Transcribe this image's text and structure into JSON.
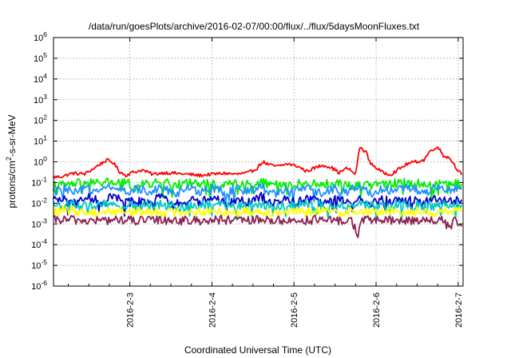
{
  "chart_data": {
    "type": "line",
    "title": "/data/run/goesPlots/archive/2016-02-07/00:00/flux/../flux/5daysMoonFluxes.txt",
    "xlabel": "Coordinated Universal Time (UTC)",
    "ylabel": "protons/cm2-s-sr-MeV",
    "ylabel_parts": {
      "before": "protons/cm",
      "superscript": "2",
      "after": "-s-sr-MeV"
    },
    "x_unit": "date (days from 2016-02-02 00:00 UTC)",
    "xlim": [
      0.07,
      5.06
    ],
    "xticks": [
      {
        "value": 1.0,
        "label": "2016-2-3"
      },
      {
        "value": 2.0,
        "label": "2016-2-4"
      },
      {
        "value": 3.0,
        "label": "2016-2-5"
      },
      {
        "value": 4.0,
        "label": "2016-2-6"
      },
      {
        "value": 5.0,
        "label": "2016-2-7"
      }
    ],
    "y_scale": "log",
    "ylim": [
      1e-06,
      1000000.0
    ],
    "yticks": [
      {
        "exp": -6,
        "base": "10",
        "power": "-6"
      },
      {
        "exp": -5,
        "base": "10",
        "power": "-5"
      },
      {
        "exp": -4,
        "base": "10",
        "power": "-4"
      },
      {
        "exp": -3,
        "base": "10",
        "power": "-3"
      },
      {
        "exp": -2,
        "base": "10",
        "power": "-2"
      },
      {
        "exp": -1,
        "base": "10",
        "power": "-1"
      },
      {
        "exp": 0,
        "base": "10",
        "power": "0"
      },
      {
        "exp": 1,
        "base": "10",
        "power": "1"
      },
      {
        "exp": 2,
        "base": "10",
        "power": "2"
      },
      {
        "exp": 3,
        "base": "10",
        "power": "3"
      },
      {
        "exp": 4,
        "base": "10",
        "power": "4"
      },
      {
        "exp": 5,
        "base": "10",
        "power": "5"
      },
      {
        "exp": 6,
        "base": "10",
        "power": "6"
      }
    ],
    "grid": true,
    "legend": "none",
    "series": [
      {
        "color": "#ff0000",
        "points": [
          [
            0.07,
            0.18
          ],
          [
            0.18,
            0.2
          ],
          [
            0.3,
            0.28
          ],
          [
            0.45,
            0.26
          ],
          [
            0.55,
            0.45
          ],
          [
            0.62,
            0.7
          ],
          [
            0.72,
            1.2
          ],
          [
            0.8,
            0.9
          ],
          [
            0.87,
            0.35
          ],
          [
            0.95,
            0.22
          ],
          [
            1.02,
            0.3
          ],
          [
            1.15,
            0.4
          ],
          [
            1.28,
            0.25
          ],
          [
            1.42,
            0.3
          ],
          [
            1.55,
            0.28
          ],
          [
            1.7,
            0.25
          ],
          [
            1.85,
            0.22
          ],
          [
            2.0,
            0.25
          ],
          [
            2.15,
            0.28
          ],
          [
            2.3,
            0.25
          ],
          [
            2.45,
            0.3
          ],
          [
            2.55,
            0.5
          ],
          [
            2.62,
            1.0
          ],
          [
            2.7,
            0.7
          ],
          [
            2.8,
            0.6
          ],
          [
            2.92,
            0.8
          ],
          [
            3.05,
            0.6
          ],
          [
            3.15,
            0.35
          ],
          [
            3.25,
            0.5
          ],
          [
            3.35,
            0.7
          ],
          [
            3.45,
            0.55
          ],
          [
            3.55,
            0.3
          ],
          [
            3.65,
            0.5
          ],
          [
            3.75,
            0.25
          ],
          [
            3.8,
            5.0
          ],
          [
            3.88,
            3.0
          ],
          [
            3.92,
            1.0
          ],
          [
            3.98,
            0.6
          ],
          [
            4.08,
            0.3
          ],
          [
            4.18,
            0.25
          ],
          [
            4.28,
            0.45
          ],
          [
            4.38,
            0.8
          ],
          [
            4.48,
            1.0
          ],
          [
            4.58,
            1.2
          ],
          [
            4.65,
            3.0
          ],
          [
            4.72,
            5.0
          ],
          [
            4.78,
            4.0
          ],
          [
            4.82,
            2.0
          ],
          [
            4.9,
            1.5
          ],
          [
            4.98,
            0.5
          ],
          [
            5.04,
            0.25
          ]
        ]
      },
      {
        "color": "#00ee00",
        "points": [
          [
            0.07,
            0.07
          ],
          [
            0.25,
            0.08
          ],
          [
            0.45,
            0.1
          ],
          [
            0.6,
            0.09
          ],
          [
            0.7,
            0.11
          ],
          [
            0.85,
            0.1
          ],
          [
            1.0,
            0.09
          ],
          [
            1.05,
            0.05
          ],
          [
            1.2,
            0.09
          ],
          [
            1.4,
            0.1
          ],
          [
            1.6,
            0.08
          ],
          [
            1.75,
            0.1
          ],
          [
            1.9,
            0.09
          ],
          [
            2.1,
            0.07
          ],
          [
            2.3,
            0.1
          ],
          [
            2.5,
            0.09
          ],
          [
            2.7,
            0.1
          ],
          [
            2.9,
            0.07
          ],
          [
            3.1,
            0.09
          ],
          [
            3.3,
            0.08
          ],
          [
            3.5,
            0.09
          ],
          [
            3.7,
            0.07
          ],
          [
            3.9,
            0.1
          ],
          [
            4.1,
            0.08
          ],
          [
            4.3,
            0.1
          ],
          [
            4.5,
            0.09
          ],
          [
            4.7,
            0.08
          ],
          [
            4.9,
            0.1
          ],
          [
            5.04,
            0.08
          ]
        ]
      },
      {
        "color": "#1e90ff",
        "points": [
          [
            0.07,
            0.035
          ],
          [
            0.2,
            0.05
          ],
          [
            0.35,
            0.03
          ],
          [
            0.5,
            0.06
          ],
          [
            0.65,
            0.04
          ],
          [
            0.8,
            0.07
          ],
          [
            0.95,
            0.03
          ],
          [
            1.1,
            0.05
          ],
          [
            1.25,
            0.04
          ],
          [
            1.4,
            0.06
          ],
          [
            1.55,
            0.03
          ],
          [
            1.7,
            0.05
          ],
          [
            1.85,
            0.04
          ],
          [
            2.0,
            0.06
          ],
          [
            2.15,
            0.03
          ],
          [
            2.3,
            0.05
          ],
          [
            2.45,
            0.04
          ],
          [
            2.6,
            0.06
          ],
          [
            2.75,
            0.03
          ],
          [
            2.9,
            0.05
          ],
          [
            3.05,
            0.04
          ],
          [
            3.2,
            0.05
          ],
          [
            3.35,
            0.03
          ],
          [
            3.5,
            0.05
          ],
          [
            3.65,
            0.04
          ],
          [
            3.8,
            0.06
          ],
          [
            3.95,
            0.03
          ],
          [
            4.1,
            0.05
          ],
          [
            4.25,
            0.04
          ],
          [
            4.4,
            0.06
          ],
          [
            4.55,
            0.03
          ],
          [
            4.7,
            0.05
          ],
          [
            4.85,
            0.04
          ],
          [
            5.04,
            0.05
          ]
        ]
      },
      {
        "color": "#0000cc",
        "points": [
          [
            0.07,
            0.012
          ],
          [
            0.2,
            0.018
          ],
          [
            0.35,
            0.01
          ],
          [
            0.5,
            0.02
          ],
          [
            0.65,
            0.012
          ],
          [
            0.8,
            0.022
          ],
          [
            0.95,
            0.01
          ],
          [
            1.1,
            0.016
          ],
          [
            1.25,
            0.012
          ],
          [
            1.4,
            0.02
          ],
          [
            1.55,
            0.01
          ],
          [
            1.7,
            0.015
          ],
          [
            1.85,
            0.012
          ],
          [
            2.0,
            0.018
          ],
          [
            2.15,
            0.01
          ],
          [
            2.3,
            0.016
          ],
          [
            2.45,
            0.012
          ],
          [
            2.6,
            0.02
          ],
          [
            2.75,
            0.01
          ],
          [
            2.9,
            0.015
          ],
          [
            3.05,
            0.012
          ],
          [
            3.2,
            0.016
          ],
          [
            3.35,
            0.01
          ],
          [
            3.5,
            0.015
          ],
          [
            3.65,
            0.012
          ],
          [
            3.8,
            0.018
          ],
          [
            3.95,
            0.01
          ],
          [
            4.1,
            0.015
          ],
          [
            4.25,
            0.012
          ],
          [
            4.4,
            0.018
          ],
          [
            4.55,
            0.01
          ],
          [
            4.7,
            0.015
          ],
          [
            4.85,
            0.012
          ],
          [
            5.04,
            0.014
          ]
        ]
      },
      {
        "color": "#00c8c8",
        "points": [
          [
            0.07,
            0.008
          ],
          [
            0.3,
            0.009
          ],
          [
            0.5,
            0.007
          ],
          [
            0.7,
            0.009
          ],
          [
            0.9,
            0.008
          ],
          [
            1.1,
            0.007
          ],
          [
            1.3,
            0.009
          ],
          [
            1.5,
            0.008
          ],
          [
            1.7,
            0.007
          ],
          [
            1.9,
            0.009
          ],
          [
            2.1,
            0.008
          ],
          [
            2.3,
            0.007
          ],
          [
            2.5,
            0.009
          ],
          [
            2.7,
            0.008
          ],
          [
            2.9,
            0.007
          ],
          [
            3.1,
            0.009
          ],
          [
            3.3,
            0.008
          ],
          [
            3.5,
            0.007
          ],
          [
            3.7,
            0.009
          ],
          [
            3.9,
            0.008
          ],
          [
            4.1,
            0.007
          ],
          [
            4.3,
            0.009
          ],
          [
            4.5,
            0.008
          ],
          [
            4.7,
            0.007
          ],
          [
            4.9,
            0.009
          ],
          [
            5.04,
            0.008
          ]
        ]
      },
      {
        "color": "#ffff00",
        "points": [
          [
            0.07,
            0.004
          ],
          [
            0.3,
            0.0045
          ],
          [
            0.5,
            0.0035
          ],
          [
            0.7,
            0.004
          ],
          [
            0.9,
            0.0042
          ],
          [
            1.1,
            0.0038
          ],
          [
            1.3,
            0.004
          ],
          [
            1.5,
            0.0036
          ],
          [
            1.7,
            0.0042
          ],
          [
            1.9,
            0.0038
          ],
          [
            2.1,
            0.004
          ],
          [
            2.3,
            0.0036
          ],
          [
            2.5,
            0.0042
          ],
          [
            2.7,
            0.0038
          ],
          [
            2.9,
            0.004
          ],
          [
            3.1,
            0.0036
          ],
          [
            3.3,
            0.0042
          ],
          [
            3.5,
            0.0038
          ],
          [
            3.7,
            0.004
          ],
          [
            3.9,
            0.0036
          ],
          [
            4.1,
            0.0042
          ],
          [
            4.3,
            0.0038
          ],
          [
            4.5,
            0.004
          ],
          [
            4.7,
            0.0036
          ],
          [
            4.9,
            0.0042
          ],
          [
            5.04,
            0.004
          ]
        ]
      },
      {
        "color": "#8b2252",
        "points": [
          [
            0.07,
            0.0015
          ],
          [
            0.3,
            0.0016
          ],
          [
            0.5,
            0.0014
          ],
          [
            0.7,
            0.0015
          ],
          [
            0.9,
            0.0016
          ],
          [
            1.1,
            0.0014
          ],
          [
            1.3,
            0.0015
          ],
          [
            1.5,
            0.0016
          ],
          [
            1.7,
            0.0014
          ],
          [
            1.9,
            0.0015
          ],
          [
            2.1,
            0.0016
          ],
          [
            2.3,
            0.0014
          ],
          [
            2.5,
            0.0015
          ],
          [
            2.7,
            0.0016
          ],
          [
            2.9,
            0.0014
          ],
          [
            3.1,
            0.0015
          ],
          [
            3.3,
            0.0016
          ],
          [
            3.5,
            0.0014
          ],
          [
            3.7,
            0.0015
          ],
          [
            3.78,
            0.0003
          ],
          [
            3.82,
            0.0015
          ],
          [
            4.0,
            0.0016
          ],
          [
            4.2,
            0.0014
          ],
          [
            4.4,
            0.0015
          ],
          [
            4.6,
            0.0016
          ],
          [
            4.8,
            0.0014
          ],
          [
            4.9,
            0.0007
          ],
          [
            4.95,
            0.0015
          ],
          [
            5.04,
            0.0008
          ]
        ]
      }
    ]
  }
}
